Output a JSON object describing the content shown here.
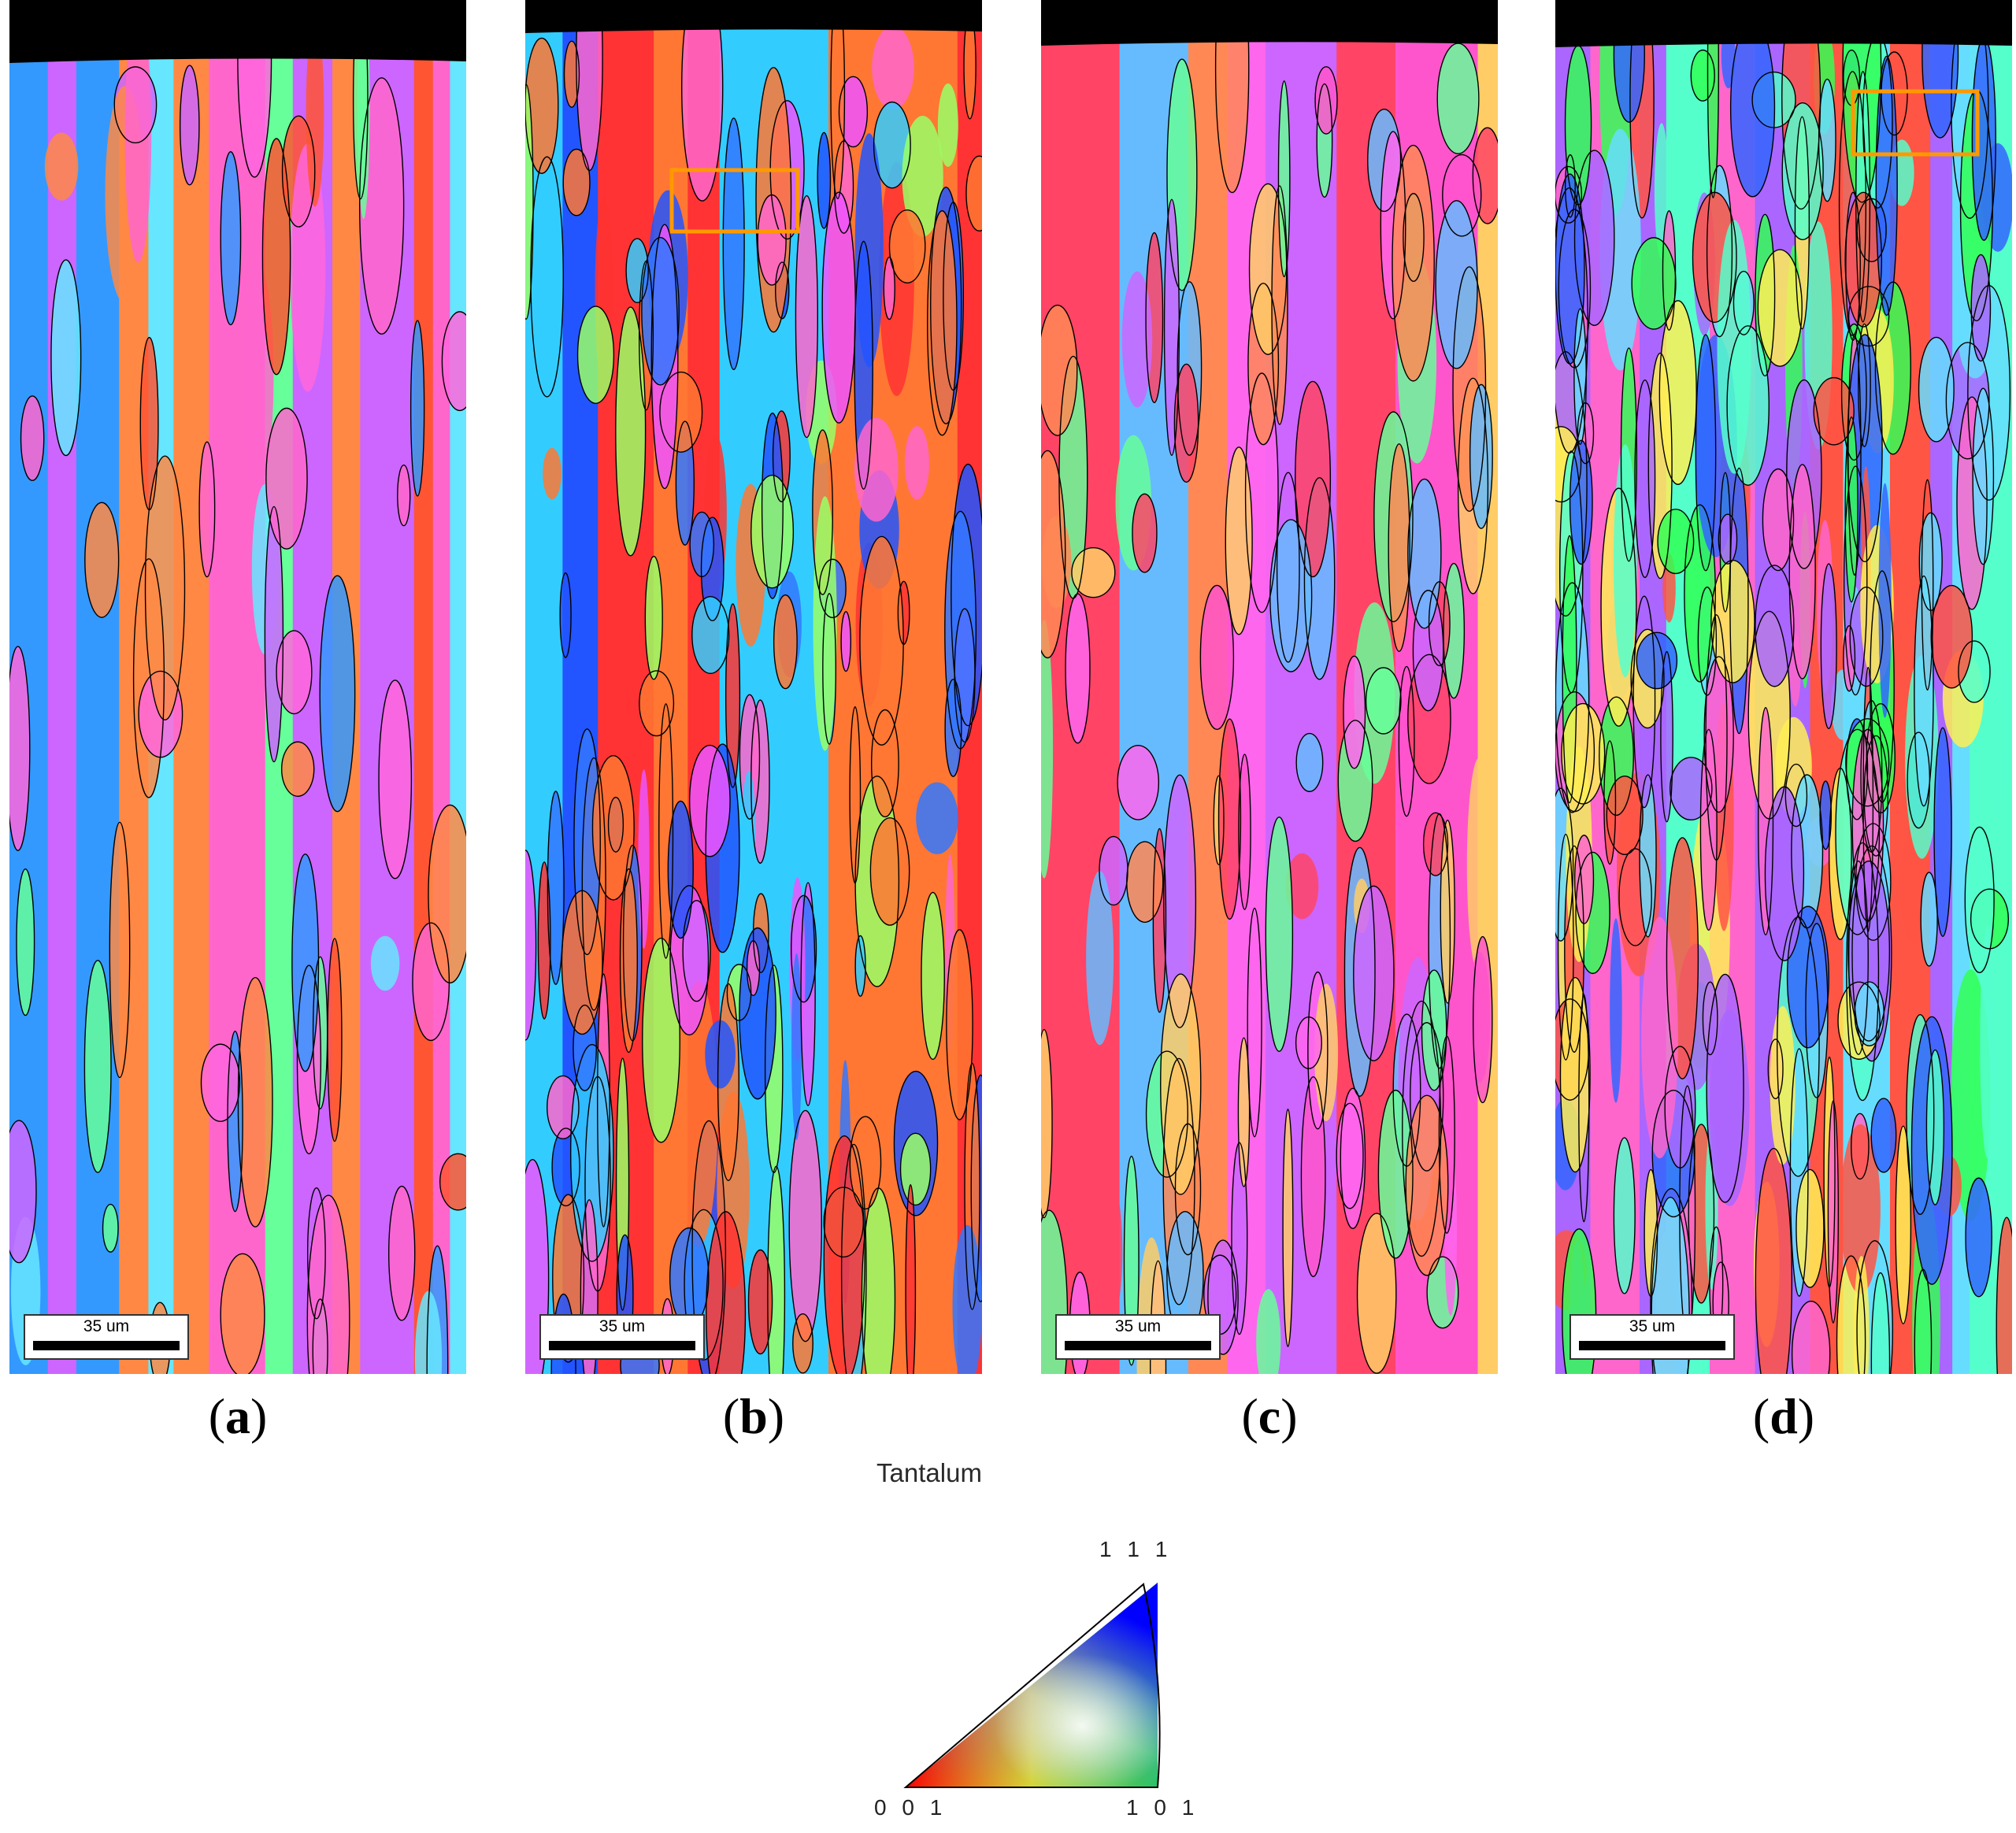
{
  "figure": {
    "panels": [
      {
        "id": "a",
        "label_text": "a",
        "scale_bar_text": "35 um",
        "boundary_density": 60,
        "palette": [
          "#cc66ff",
          "#3399ff",
          "#66e6ff",
          "#ff66dd",
          "#ff5533",
          "#ff8844",
          "#ff66cc",
          "#66ff99"
        ]
      },
      {
        "id": "b",
        "label_text": "b",
        "scale_bar_text": "35 um",
        "boundary_density": 150,
        "palette": [
          "#3377ff",
          "#2255ff",
          "#ff3333",
          "#ff66cc",
          "#ff7733",
          "#33ccff",
          "#ee55ff",
          "#99ff66"
        ]
      },
      {
        "id": "c",
        "label_text": "c",
        "scale_bar_text": "35 um",
        "boundary_density": 110,
        "palette": [
          "#ff55cc",
          "#ff4466",
          "#ff66ee",
          "#66bbff",
          "#ff8855",
          "#cc66ff",
          "#66ff99",
          "#ffcc66"
        ]
      },
      {
        "id": "d",
        "label_text": "d",
        "scale_bar_text": "35 um",
        "boundary_density": 230,
        "palette": [
          "#33ff55",
          "#3366ff",
          "#ff66cc",
          "#55ffcc",
          "#ff5544",
          "#aa66ff",
          "#66ddff",
          "#ffee55"
        ]
      }
    ]
  },
  "legend": {
    "title": "Tantalum",
    "vertex_top": "1 1 1",
    "vertex_left": "0 0 1",
    "vertex_right": "1 0 1",
    "colors": {
      "v001": "#ff0000",
      "v101": "#00ff00",
      "v111": "#0000ff"
    }
  },
  "colors": {
    "highlight_box": "#ff9900",
    "boundary": "#000000"
  }
}
